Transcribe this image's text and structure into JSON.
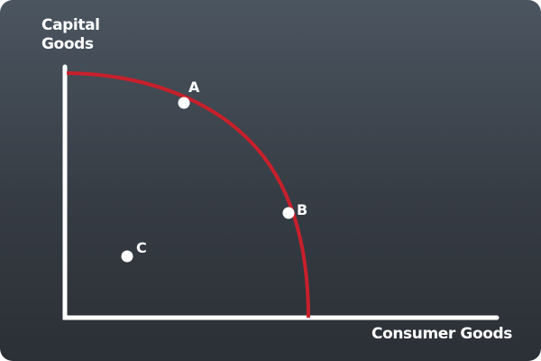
{
  "axes": {
    "y_label_line1": "Capital",
    "y_label_line2": "Goods",
    "x_label": "Consumer Goods"
  },
  "points": [
    {
      "name": "A",
      "on_curve": true
    },
    {
      "name": "B",
      "on_curve": true
    },
    {
      "name": "C",
      "on_curve": false
    }
  ],
  "colors": {
    "background_top": "#4b5560",
    "background_bottom": "#2b3036",
    "axis": "#ffffff",
    "curve": "#c8202b",
    "point": "#ffffff"
  }
}
